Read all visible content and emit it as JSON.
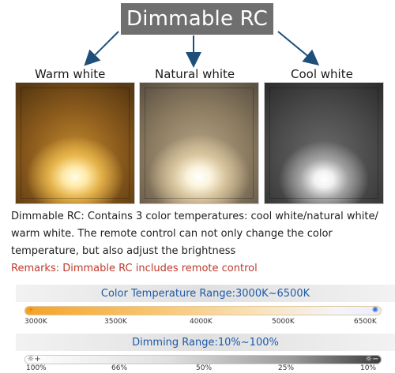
{
  "header": {
    "title": "Dimmable RC"
  },
  "panels": [
    {
      "label": "Warm white"
    },
    {
      "label": "Natural white"
    },
    {
      "label": "Cool white"
    }
  ],
  "description": "Dimmable RC: Contains 3 color temperatures: cool white/natural white/ warm white. The remote control can not only change the color temperature, but also adjust the brightness",
  "remarks": "Remarks: Dimmable RC includes remote control",
  "color_temperature": {
    "title": "Color Temperature Range:3000K~6500K",
    "ticks": [
      "3000K",
      "3500K",
      "4000K",
      "5000K",
      "6500K"
    ],
    "start_icon": "sun-warm-icon",
    "end_icon": "sun-cool-icon"
  },
  "dimming": {
    "title": "Dimming Range:10%~100%",
    "ticks": [
      "100%",
      "66%",
      "50%",
      "25%",
      "10%"
    ],
    "start_icon": "brightness-up-icon",
    "end_icon": "brightness-down-icon"
  },
  "colors": {
    "title_bg": "#6f6f6f",
    "remarks": "#c0392b",
    "range_title": "#1e5aa8",
    "warm": "#f4a32a",
    "cool": "#e8eefc"
  }
}
